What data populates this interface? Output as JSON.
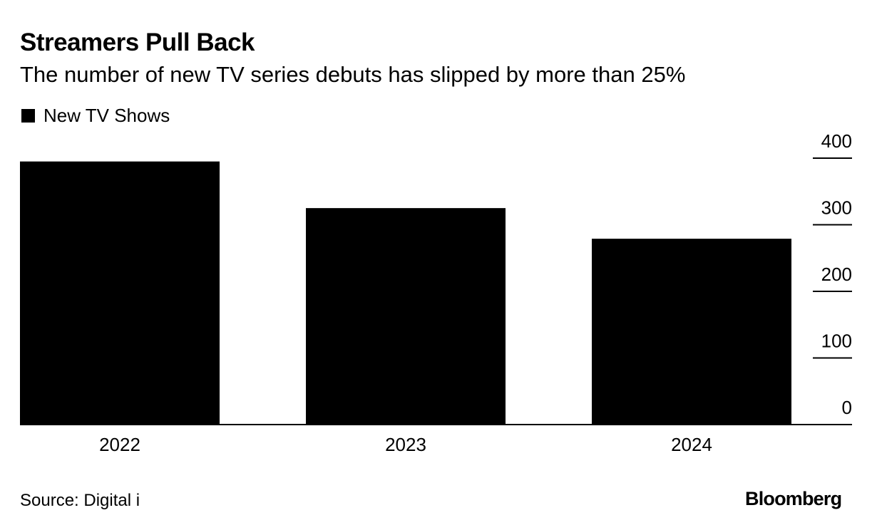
{
  "header": {
    "title": "Streamers Pull Back",
    "subtitle": "The number of new TV series debuts has slipped by more than 25%"
  },
  "legend": {
    "label": "New TV Shows",
    "color": "#000000"
  },
  "footer": {
    "source": "Source: Digital i",
    "brand": "Bloomberg"
  },
  "chart_data": {
    "type": "bar",
    "title": "Streamers Pull Back",
    "subtitle": "The number of new TV series debuts has slipped by more than 25%",
    "categories": [
      "2022",
      "2023",
      "2024"
    ],
    "series": [
      {
        "name": "New TV Shows",
        "values": [
          395,
          325,
          279
        ],
        "color": "#000000"
      }
    ],
    "xlabel": "",
    "ylabel": "",
    "ylim": [
      0,
      400
    ],
    "yticks": [
      0,
      100,
      200,
      300,
      400
    ],
    "axis_position": "right",
    "grid": false,
    "legend_position": "top-left"
  }
}
